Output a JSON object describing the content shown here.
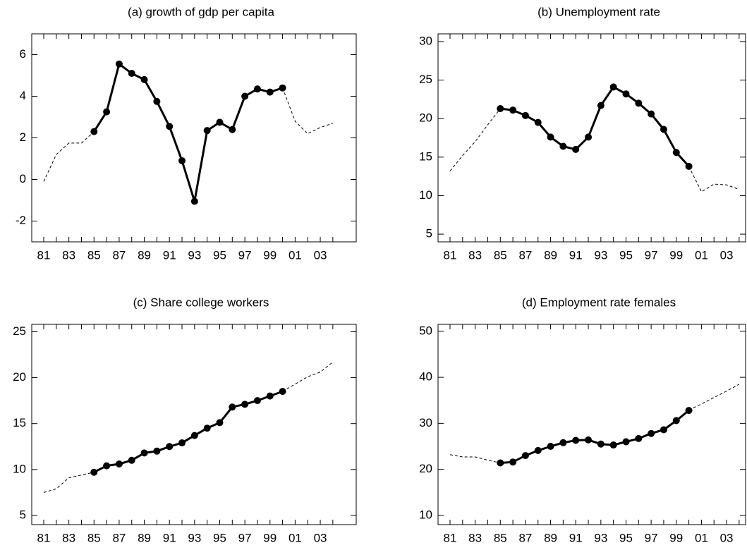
{
  "chart_data": [
    {
      "type": "line",
      "title": "(a) growth of gdp per capita",
      "categories": [
        "81",
        null,
        "83",
        null,
        "85",
        null,
        "87",
        null,
        "89",
        null,
        "91",
        null,
        "93",
        null,
        "95",
        null,
        "97",
        null,
        "99",
        null,
        "01",
        null,
        "03",
        null
      ],
      "ylim": [
        -3,
        7
      ],
      "yticks": [
        -2,
        0,
        2,
        4,
        6
      ],
      "series": [
        {
          "color": "#000000",
          "line_style": "dashed",
          "markers": false,
          "values": [
            -0.1,
            1.2,
            1.75,
            1.75,
            2.3,
            null,
            null,
            null,
            null,
            null,
            null,
            null,
            null,
            null,
            null,
            null,
            null,
            null,
            null,
            4.4,
            2.8,
            2.2,
            2.5,
            2.7
          ]
        },
        {
          "color": "#000000",
          "line_style": "solid",
          "markers": true,
          "values": [
            null,
            null,
            null,
            null,
            2.3,
            3.25,
            5.55,
            5.1,
            4.8,
            3.75,
            2.55,
            0.9,
            -1.05,
            2.35,
            2.75,
            2.4,
            4.0,
            4.35,
            4.2,
            4.4,
            null,
            null,
            null,
            null
          ]
        }
      ]
    },
    {
      "type": "line",
      "title": "(b) Unemployment rate",
      "categories": [
        "81",
        null,
        "83",
        null,
        "85",
        null,
        "87",
        null,
        "89",
        null,
        "91",
        null,
        "93",
        null,
        "95",
        null,
        "97",
        null,
        "99",
        null,
        "01",
        null,
        "03",
        null
      ],
      "ylim": [
        4,
        31
      ],
      "yticks": [
        5,
        10,
        15,
        20,
        25,
        30
      ],
      "series": [
        {
          "color": "#000000",
          "line_style": "dashed",
          "markers": false,
          "values": [
            13.2,
            15.2,
            17,
            19.2,
            21.3,
            null,
            null,
            null,
            null,
            null,
            null,
            null,
            null,
            null,
            null,
            null,
            null,
            null,
            null,
            13.8,
            10.5,
            11.5,
            11.4,
            10.8
          ]
        },
        {
          "color": "#000000",
          "line_style": "solid",
          "markers": true,
          "values": [
            null,
            null,
            null,
            null,
            21.3,
            21.1,
            20.4,
            19.5,
            17.6,
            16.4,
            16.0,
            17.6,
            21.7,
            24.1,
            23.2,
            22.0,
            20.6,
            18.6,
            15.6,
            13.8,
            null,
            null,
            null,
            null
          ]
        }
      ]
    },
    {
      "type": "line",
      "title": "(c) Share college workers",
      "categories": [
        "81",
        null,
        "83",
        null,
        "85",
        null,
        "87",
        null,
        "89",
        null,
        "91",
        null,
        "93",
        null,
        "95",
        null,
        "97",
        null,
        "99",
        null,
        "01",
        null,
        "03",
        null
      ],
      "ylim": [
        4,
        25.8
      ],
      "yticks": [
        5,
        10,
        15,
        20,
        25
      ],
      "series": [
        {
          "color": "#000000",
          "line_style": "dashed",
          "markers": false,
          "values": [
            7.5,
            7.9,
            9.1,
            9.4,
            9.7,
            null,
            null,
            null,
            null,
            null,
            null,
            null,
            null,
            null,
            null,
            null,
            null,
            null,
            null,
            18.5,
            19.3,
            20.1,
            20.6,
            21.7
          ]
        },
        {
          "color": "#000000",
          "line_style": "solid",
          "markers": true,
          "values": [
            null,
            null,
            null,
            null,
            9.7,
            10.4,
            10.6,
            11.0,
            11.8,
            12.0,
            12.5,
            12.9,
            13.7,
            14.5,
            15.1,
            16.8,
            17.1,
            17.5,
            18.0,
            18.5,
            null,
            null,
            null,
            null
          ]
        }
      ]
    },
    {
      "type": "line",
      "title": "(d) Employment rate females",
      "categories": [
        "81",
        null,
        "83",
        null,
        "85",
        null,
        "87",
        null,
        "89",
        null,
        "91",
        null,
        "93",
        null,
        "95",
        null,
        "97",
        null,
        "99",
        null,
        "01",
        null,
        "03",
        null
      ],
      "ylim": [
        8,
        51.5
      ],
      "yticks": [
        10,
        20,
        30,
        40,
        50
      ],
      "series": [
        {
          "color": "#000000",
          "line_style": "dashed",
          "markers": false,
          "values": [
            23.2,
            22.7,
            22.7,
            22,
            21.4,
            null,
            null,
            null,
            null,
            null,
            null,
            null,
            null,
            null,
            null,
            null,
            null,
            null,
            null,
            32.9,
            34.2,
            35.6,
            37,
            38.5
          ]
        },
        {
          "color": "#000000",
          "line_style": "solid",
          "markers": true,
          "values": [
            null,
            null,
            null,
            null,
            21.4,
            21.6,
            23.0,
            24.1,
            25.0,
            25.8,
            26.3,
            26.4,
            25.5,
            25.3,
            26.0,
            26.7,
            27.8,
            28.6,
            30.6,
            32.8,
            null,
            null,
            null,
            null
          ]
        }
      ]
    }
  ]
}
